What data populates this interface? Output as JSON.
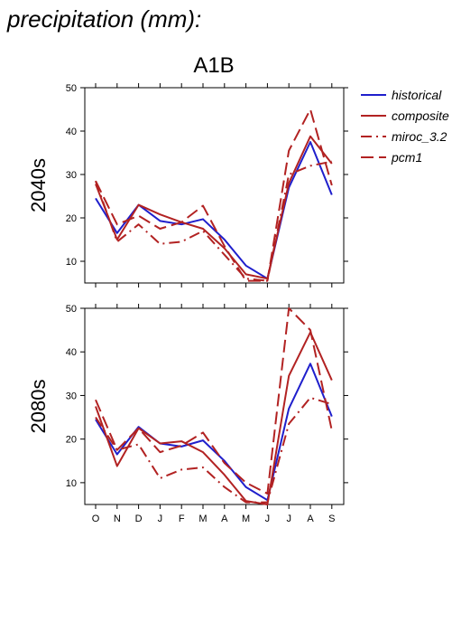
{
  "header": "precipitation (mm):",
  "chart_data": {
    "type": "line",
    "title": "A1B",
    "categories": [
      "O",
      "N",
      "D",
      "J",
      "F",
      "M",
      "A",
      "M",
      "J",
      "J",
      "A",
      "S"
    ],
    "ylim": [
      5,
      50
    ],
    "yticks": [
      10,
      20,
      30,
      40,
      50
    ],
    "legend_position": "right",
    "legend": [
      {
        "name": "historical",
        "color": "#1f1fcc",
        "dash": "solid"
      },
      {
        "name": "composite",
        "color": "#b22222",
        "dash": "solid"
      },
      {
        "name": "miroc_3.2",
        "color": "#b22222",
        "dash": "dashdot"
      },
      {
        "name": "pcm1",
        "color": "#b22222",
        "dash": "dash"
      }
    ],
    "panels": [
      {
        "label": "2040s",
        "series": [
          {
            "name": "historical",
            "values": [
              24.5,
              16.5,
              23.0,
              19.3,
              18.5,
              19.7,
              15.0,
              9.0,
              6.0,
              27.0,
              37.5,
              25.3
            ]
          },
          {
            "name": "composite",
            "values": [
              27.8,
              15.0,
              23.0,
              20.8,
              19.0,
              17.5,
              13.0,
              7.0,
              6.0,
              28.0,
              38.8,
              32.5
            ]
          },
          {
            "name": "miroc_3.2",
            "values": [
              28.5,
              14.5,
              18.5,
              14.0,
              14.5,
              17.0,
              11.5,
              6.0,
              5.5,
              30.0,
              32.0,
              33.0
            ]
          },
          {
            "name": "pcm1",
            "values": [
              28.5,
              18.5,
              20.5,
              17.5,
              19.0,
              22.8,
              13.5,
              5.5,
              5.5,
              35.5,
              45.0,
              27.5
            ]
          }
        ]
      },
      {
        "label": "2080s",
        "series": [
          {
            "name": "historical",
            "values": [
              24.5,
              16.5,
              22.8,
              19.0,
              18.3,
              19.7,
              15.0,
              9.0,
              6.0,
              27.0,
              37.3,
              25.2
            ]
          },
          {
            "name": "composite",
            "values": [
              27.5,
              13.8,
              22.5,
              19.0,
              19.5,
              17.0,
              11.8,
              5.8,
              5.0,
              34.5,
              44.5,
              33.5
            ]
          },
          {
            "name": "miroc_3.2",
            "values": [
              25.0,
              17.5,
              18.8,
              11.0,
              13.0,
              13.5,
              9.0,
              5.5,
              5.5,
              23.5,
              29.5,
              28.0
            ]
          },
          {
            "name": "pcm1",
            "values": [
              29.0,
              17.5,
              22.5,
              17.0,
              18.5,
              21.5,
              14.5,
              10.0,
              7.5,
              50.0,
              45.0,
              22.0
            ]
          }
        ]
      }
    ]
  }
}
